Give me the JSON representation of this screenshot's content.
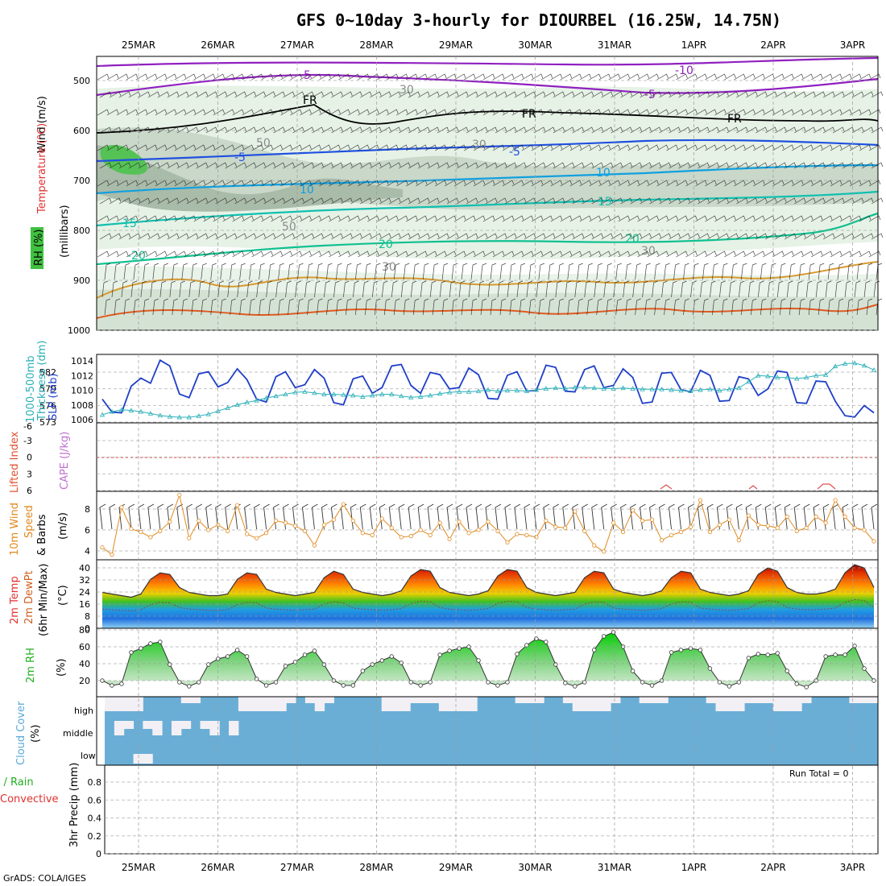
{
  "header": {
    "title": "GFS 0~10day 3-hourly for DIOURBEL (16.25W, 14.75N)",
    "credit": "GrADS: COLA/IGES"
  },
  "dates": [
    "25MAR",
    "26MAR",
    "27MAR",
    "28MAR",
    "29MAR",
    "30MAR",
    "31MAR",
    "1APR",
    "2APR",
    "3APR"
  ],
  "colors": {
    "slp": "#1f3fc8",
    "thickness": "#2ab0b8",
    "wind": "#e08a20",
    "temp_label": "#e03030",
    "rh_label": "#20b020",
    "cloud": "#6aaed6",
    "cloud_light": "#f2f0f5",
    "purple": "#9020c0"
  },
  "panels": [
    {
      "id": "upper-air",
      "labels": [
        "Wind (m/s)",
        "Temperature (°C)",
        "(millibars)",
        "RH (%)"
      ],
      "yticks": [
        "500",
        "600",
        "700",
        "800",
        "900",
        "1000"
      ]
    },
    {
      "id": "slp-thickness",
      "labels": [
        "1000-500mb",
        "Thickness (dm)",
        "SLP (mb)"
      ],
      "yticks_left": [
        "582",
        "579",
        "576",
        "573"
      ],
      "yticks_right": [
        "1014",
        "1012",
        "1010",
        "1008",
        "1006"
      ]
    },
    {
      "id": "cape-li",
      "labels": [
        "Lifted Index",
        "CAPE (J/kg)"
      ],
      "yticks": [
        "-3",
        "0",
        "3",
        "6",
        "-6"
      ]
    },
    {
      "id": "wind10m",
      "labels": [
        "10m Wind",
        "Speed",
        "& Barbs",
        "(m/s)"
      ],
      "yticks": [
        "8",
        "6",
        "4"
      ]
    },
    {
      "id": "temp2m",
      "labels": [
        "2m Temp",
        "2m DewPt",
        "(6hr Min/Max)",
        "(°C)"
      ],
      "yticks": [
        "40",
        "32",
        "24",
        "16",
        "8",
        "0"
      ]
    },
    {
      "id": "rh2m",
      "labels": [
        "2m RH",
        "(%)"
      ],
      "yticks": [
        "80",
        "60",
        "40",
        "20"
      ]
    },
    {
      "id": "cloud",
      "labels": [
        "Cloud Cover",
        "(%)"
      ],
      "yticks": [
        "high",
        "middle",
        "low"
      ]
    },
    {
      "id": "precip",
      "labels": [
        "Total / Rain",
        "Convective",
        "3hr Precip (mm)"
      ],
      "yticks": [
        "0.8",
        "0.6",
        "0.4",
        "0.2",
        "0"
      ],
      "run_total": "Run Total = 0"
    }
  ],
  "contour_labels": {
    "temps": [
      "-10",
      "-5",
      "-5",
      "FR",
      "FR",
      "FR",
      "-5",
      "5",
      "10",
      "10",
      "15",
      "15",
      "20",
      "20",
      "-20",
      "30",
      "50",
      "30",
      "50",
      "50",
      "30"
    ]
  },
  "chart_data": [
    {
      "type": "line",
      "title": "SLP (mb)",
      "ylim": [
        1005.5,
        1015
      ],
      "values": [
        1008.8,
        1007.0,
        1006.9,
        1010.6,
        1011.7,
        1011.0,
        1014.2,
        1013.4,
        1009.5,
        1009.0,
        1012.3,
        1012.6,
        1010.5,
        1011.1,
        1013.0,
        1011.5,
        1008.8,
        1008.4,
        1011.9,
        1012.6,
        1010.4,
        1010.8,
        1012.9,
        1011.7,
        1008.3,
        1008.0,
        1011.6,
        1012.0,
        1009.6,
        1010.4,
        1013.4,
        1013.6,
        1010.7,
        1009.6,
        1012.5,
        1012.2,
        1010.2,
        1010.4,
        1013.1,
        1012.2,
        1008.9,
        1008.8,
        1012.1,
        1012.6,
        1009.9,
        1010.0,
        1013.5,
        1013.2,
        1009.9,
        1009.8,
        1012.9,
        1013.4,
        1010.4,
        1010.7,
        1013.0,
        1011.8,
        1008.2,
        1008.4,
        1012.4,
        1012.5,
        1010.1,
        1009.8,
        1012.8,
        1012.1,
        1008.5,
        1008.6,
        1011.9,
        1011.6,
        1009.3,
        1010.2,
        1012.7,
        1012.5,
        1008.3,
        1008.2,
        1011.3,
        1011.2,
        1008.5,
        1006.5,
        1006.3,
        1007.9,
        1006.9
      ]
    },
    {
      "type": "line",
      "title": "1000-500mb Thickness (dm)",
      "ylim": [
        573,
        584
      ],
      "values": [
        574.3,
        574.8,
        575.1,
        575.0,
        574.8,
        574.5,
        574.2,
        574.0,
        573.9,
        573.9,
        574.1,
        574.4,
        574.9,
        575.4,
        575.9,
        576.3,
        576.6,
        577.0,
        577.3,
        577.6,
        577.9,
        578.0,
        577.8,
        577.6,
        577.6,
        577.5,
        577.4,
        577.2,
        577.4,
        577.6,
        577.6,
        577.3,
        577.1,
        577.2,
        577.4,
        577.7,
        577.9,
        578.0,
        578.0,
        578.1,
        578.3,
        578.1,
        578.2,
        578.2,
        578.1,
        578.3,
        578.5,
        578.6,
        578.5,
        578.7,
        578.7,
        578.6,
        578.5,
        578.5,
        578.6,
        578.5,
        578.4,
        578.4,
        578.4,
        578.3,
        578.2,
        578.1,
        578.3,
        578.4,
        578.2,
        578.4,
        578.6,
        579.6,
        580.6,
        580.5,
        580.3,
        580.3,
        580.1,
        580.3,
        580.6,
        580.7,
        582.1,
        582.5,
        582.6,
        582.2,
        581.5
      ]
    },
    {
      "type": "line",
      "title": "10m Wind Speed (m/s)",
      "ylim": [
        3,
        9.5
      ],
      "values": [
        4.2,
        3.5,
        8.1,
        6.0,
        5.7,
        5.2,
        5.8,
        6.7,
        9.3,
        5.1,
        6.8,
        5.9,
        6.4,
        5.8,
        8.3,
        5.5,
        5.1,
        5.6,
        6.8,
        6.6,
        6.3,
        5.8,
        4.4,
        6.4,
        6.9,
        8.4,
        6.8,
        5.6,
        5.4,
        7.0,
        6.1,
        5.2,
        5.3,
        5.9,
        5.4,
        6.6,
        5.0,
        6.7,
        5.6,
        5.9,
        6.7,
        5.8,
        4.7,
        5.5,
        5.4,
        5.2,
        6.8,
        6.2,
        6.1,
        7.7,
        5.8,
        4.4,
        3.8,
        6.6,
        5.7,
        7.8,
        6.8,
        6.9,
        4.9,
        5.4,
        5.7,
        6.2,
        8.8,
        5.7,
        6.4,
        6.9,
        4.9,
        7.3,
        6.4,
        6.3,
        6.1,
        7.2,
        5.8,
        6.1,
        7.2,
        6.6,
        8.8,
        7.2,
        6.1,
        5.9,
        4.8
      ]
    },
    {
      "type": "area",
      "title": "2m Temp (°C)",
      "ylim": [
        0,
        42
      ],
      "values": [
        22,
        21,
        20,
        19,
        21,
        30,
        34,
        33,
        25,
        22,
        21,
        20,
        20,
        21,
        30,
        34,
        33,
        24,
        22,
        21,
        20,
        21,
        22,
        31,
        35,
        33,
        24,
        22,
        21,
        20,
        21,
        23,
        32,
        36,
        35,
        25,
        22,
        21,
        20,
        21,
        23,
        32,
        36,
        35,
        25,
        22,
        21,
        20,
        21,
        22,
        31,
        35,
        34,
        24,
        22,
        21,
        20,
        21,
        23,
        31,
        35,
        34,
        24,
        22,
        21,
        20,
        21,
        23,
        33,
        37,
        35,
        25,
        22,
        21,
        21,
        22,
        24,
        34,
        39,
        37,
        25
      ]
    },
    {
      "type": "area",
      "title": "2m RH (%)",
      "ylim": [
        0,
        85
      ],
      "values": [
        20,
        14,
        16,
        55,
        60,
        66,
        68,
        40,
        18,
        13,
        18,
        40,
        47,
        50,
        58,
        50,
        22,
        14,
        18,
        38,
        43,
        52,
        57,
        40,
        20,
        14,
        14,
        32,
        40,
        45,
        50,
        42,
        18,
        14,
        18,
        52,
        57,
        60,
        62,
        45,
        18,
        14,
        18,
        53,
        64,
        72,
        68,
        40,
        17,
        13,
        18,
        58,
        75,
        80,
        62,
        32,
        18,
        14,
        20,
        55,
        58,
        60,
        58,
        35,
        18,
        13,
        18,
        48,
        53,
        52,
        54,
        32,
        16,
        12,
        20,
        50,
        52,
        52,
        63,
        35,
        20
      ]
    },
    {
      "type": "table",
      "title": "Run Total",
      "value": 0
    }
  ]
}
